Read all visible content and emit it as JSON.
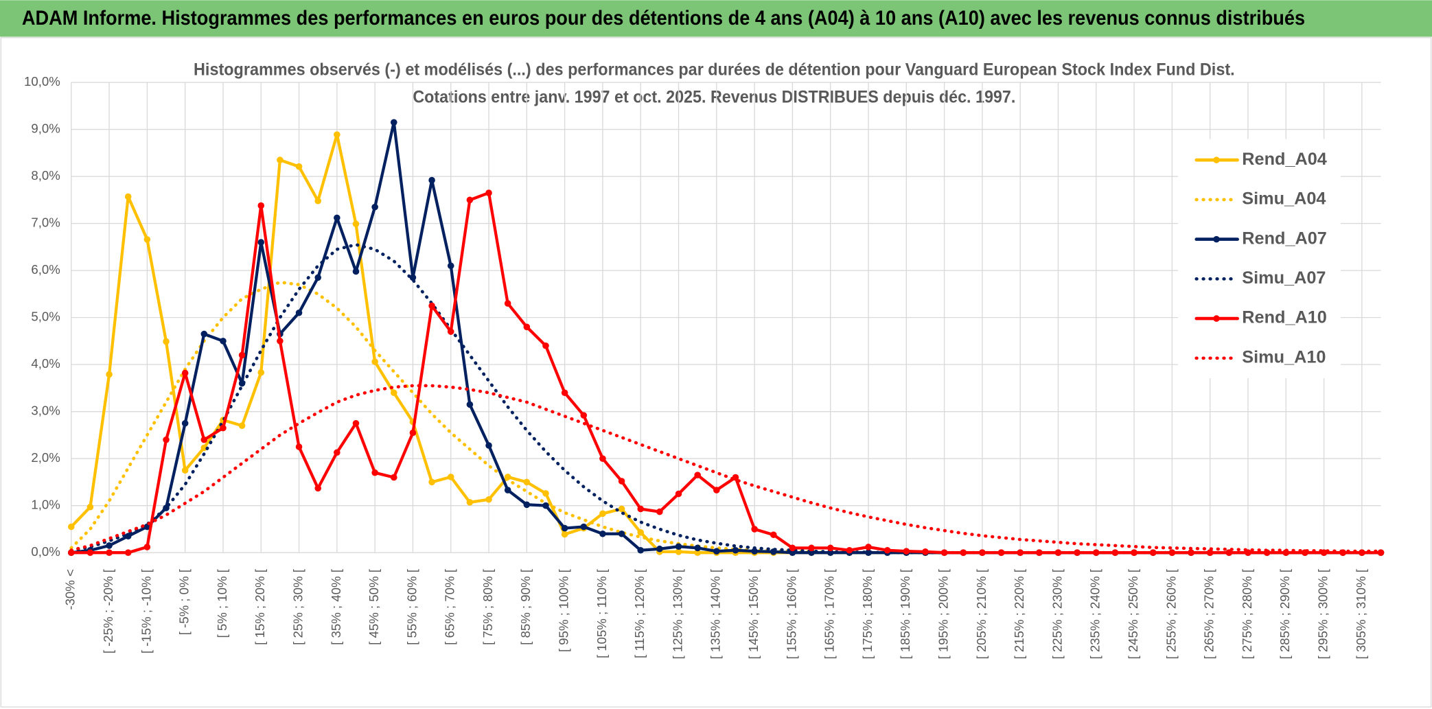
{
  "header": {
    "title": "ADAM Informe. Histogrammes des performances en euros pour des détentions de 4 ans (A04) à 10 ans (A10) avec les revenus connus distribués"
  },
  "chart_data": {
    "type": "line",
    "title": "Histogrammes observés (-) et modélisés (...) des performances par durées de détention pour Vanguard European Stock Index Fund Dist.",
    "subtitle": "Cotations entre janv. 1997 et oct. 2025. Revenus DISTRIBUES depuis déc. 1997.",
    "categories": [
      "-30% <",
      null,
      "[ -25% ; -20% [",
      null,
      "[ -15% ; -10% [",
      null,
      "[ -5% ; 0% [",
      null,
      "[ 5% ; 10% [",
      null,
      "[ 15% ; 20% [",
      null,
      "[ 25% ; 30% [",
      null,
      "[ 35% ; 40% [",
      null,
      "[ 45% ; 50% [",
      null,
      "[ 55% ; 60% [",
      null,
      "[ 65% ; 70% [",
      null,
      "[ 75% ; 80% [",
      null,
      "[ 85% ; 90% [",
      null,
      "[ 95% ; 100% [",
      null,
      "[ 105% ; 110% [",
      null,
      "[ 115% ; 120% [",
      null,
      "[ 125% ; 130% [",
      null,
      "[ 135% ; 140% [",
      null,
      "[ 145% ; 150% [",
      null,
      "[ 155% ; 160% [",
      null,
      "[ 165% ; 170% [",
      null,
      "[ 175% ; 180% [",
      null,
      "[ 185% ; 190% [",
      null,
      "[ 195% ; 200% [",
      null,
      "[ 205% ; 210% [",
      null,
      "[ 215% ; 220% [",
      null,
      "[ 225% ; 230% [",
      null,
      "[ 235% ; 240% [",
      null,
      "[ 245% ; 250% [",
      null,
      "[ 255% ; 260% [",
      null,
      "[ 265% ; 270% [",
      null,
      "[ 275% ; 280% [",
      null,
      "[ 285% ; 290% [",
      null,
      "[ 295% ; 300% [",
      null,
      "[ 305% ; 310% [",
      null
    ],
    "series": [
      {
        "name": "Rend_A04",
        "color": "#ffc000",
        "style": "solid",
        "markers": true,
        "values": [
          0.55,
          0.97,
          3.79,
          7.57,
          6.66,
          4.49,
          1.75,
          2.23,
          2.82,
          2.7,
          3.83,
          8.35,
          8.21,
          7.48,
          8.89,
          6.99,
          4.06,
          3.4,
          2.78,
          1.5,
          1.61,
          1.07,
          1.13,
          1.61,
          1.5,
          1.26,
          0.39,
          0.52,
          0.83,
          0.93,
          0.43,
          0.02,
          0.02,
          0,
          0,
          0,
          0,
          0,
          0,
          0,
          0,
          0,
          0,
          0,
          0,
          0,
          0,
          0,
          0,
          0,
          0,
          0,
          0,
          0,
          0,
          0,
          0,
          0,
          0,
          0,
          0,
          0,
          0,
          0,
          0,
          0,
          0,
          0,
          0,
          0
        ]
      },
      {
        "name": "Simu_A04",
        "color": "#ffc000",
        "style": "dotted",
        "markers": false,
        "values": [
          0.1,
          0.5,
          1.1,
          1.8,
          2.5,
          3.2,
          3.9,
          4.5,
          5.0,
          5.4,
          5.6,
          5.75,
          5.7,
          5.5,
          5.2,
          4.8,
          4.3,
          3.85,
          3.4,
          2.95,
          2.55,
          2.2,
          1.85,
          1.55,
          1.3,
          1.05,
          0.85,
          0.7,
          0.55,
          0.43,
          0.33,
          0.25,
          0.19,
          0.14,
          0.1,
          0.07,
          0.05,
          0.04,
          0.03,
          0.02,
          0.01,
          0,
          0,
          0,
          0,
          0,
          0,
          0,
          0,
          0,
          0,
          0,
          0,
          0,
          0,
          0,
          0,
          0,
          0,
          0,
          0,
          0,
          0,
          0,
          0,
          0,
          0,
          0,
          0,
          0
        ]
      },
      {
        "name": "Rend_A07",
        "color": "#002060",
        "style": "solid",
        "markers": true,
        "values": [
          0,
          0.05,
          0.15,
          0.35,
          0.55,
          0.95,
          2.75,
          4.65,
          4.5,
          3.6,
          6.6,
          4.65,
          5.1,
          5.85,
          7.12,
          5.98,
          7.35,
          9.15,
          5.85,
          7.92,
          6.1,
          3.15,
          2.28,
          1.33,
          1.02,
          1.0,
          0.52,
          0.55,
          0.4,
          0.4,
          0.05,
          0.08,
          0.13,
          0.1,
          0.03,
          0.05,
          0.03,
          0.02,
          0,
          0,
          0,
          0,
          0,
          0,
          0,
          0,
          0,
          0,
          0,
          0,
          0,
          0,
          0,
          0,
          0,
          0,
          0,
          0,
          0,
          0,
          0,
          0,
          0,
          0,
          0,
          0,
          0,
          0,
          0,
          0
        ]
      },
      {
        "name": "Simu_A07",
        "color": "#002060",
        "style": "dotted",
        "markers": false,
        "values": [
          0.05,
          0.12,
          0.25,
          0.4,
          0.6,
          0.95,
          1.45,
          2.1,
          2.8,
          3.55,
          4.3,
          5.0,
          5.6,
          6.1,
          6.45,
          6.55,
          6.45,
          6.2,
          5.8,
          5.3,
          4.75,
          4.2,
          3.65,
          3.1,
          2.6,
          2.15,
          1.75,
          1.4,
          1.1,
          0.85,
          0.65,
          0.5,
          0.37,
          0.27,
          0.2,
          0.14,
          0.1,
          0.07,
          0.05,
          0.03,
          0.02,
          0.01,
          0.01,
          0,
          0,
          0,
          0,
          0,
          0,
          0,
          0,
          0,
          0,
          0,
          0,
          0,
          0,
          0,
          0,
          0,
          0,
          0,
          0,
          0,
          0,
          0,
          0,
          0,
          0,
          0
        ]
      },
      {
        "name": "Rend_A10",
        "color": "#ff0000",
        "style": "solid",
        "markers": true,
        "values": [
          0,
          0,
          0,
          0,
          0.12,
          2.4,
          3.82,
          2.4,
          2.65,
          4.2,
          7.38,
          4.5,
          2.25,
          1.37,
          2.13,
          2.75,
          1.7,
          1.6,
          2.55,
          5.25,
          4.7,
          7.5,
          7.65,
          5.3,
          4.8,
          4.4,
          3.4,
          2.92,
          2.0,
          1.52,
          0.93,
          0.87,
          1.25,
          1.65,
          1.33,
          1.6,
          0.5,
          0.38,
          0.1,
          0.1,
          0.1,
          0.05,
          0.12,
          0.05,
          0.03,
          0.02,
          0,
          0,
          0,
          0,
          0,
          0,
          0,
          0,
          0,
          0,
          0,
          0,
          0,
          0,
          0,
          0,
          0,
          0,
          0,
          0,
          0,
          0,
          0,
          0
        ]
      },
      {
        "name": "Simu_A10",
        "color": "#ff0000",
        "style": "dotted",
        "markers": false,
        "values": [
          0.05,
          0.15,
          0.3,
          0.45,
          0.6,
          0.8,
          1.05,
          1.3,
          1.6,
          1.9,
          2.2,
          2.5,
          2.75,
          2.98,
          3.2,
          3.35,
          3.45,
          3.52,
          3.55,
          3.55,
          3.52,
          3.47,
          3.4,
          3.3,
          3.2,
          3.05,
          2.9,
          2.75,
          2.6,
          2.45,
          2.3,
          2.15,
          2.0,
          1.85,
          1.7,
          1.55,
          1.42,
          1.3,
          1.18,
          1.06,
          0.95,
          0.85,
          0.76,
          0.68,
          0.6,
          0.53,
          0.47,
          0.41,
          0.36,
          0.32,
          0.28,
          0.25,
          0.22,
          0.19,
          0.17,
          0.15,
          0.13,
          0.11,
          0.1,
          0.09,
          0.08,
          0.07,
          0.06,
          0.05,
          0.05,
          0.04,
          0.04,
          0.03,
          0.03,
          0.03
        ]
      }
    ],
    "ylim": [
      0,
      10
    ],
    "yticks": [
      {
        "value": 0,
        "label": "0,0%"
      },
      {
        "value": 1,
        "label": "1,0%"
      },
      {
        "value": 2,
        "label": "2,0%"
      },
      {
        "value": 3,
        "label": "3,0%"
      },
      {
        "value": 4,
        "label": "4,0%"
      },
      {
        "value": 5,
        "label": "5,0%"
      },
      {
        "value": 6,
        "label": "6,0%"
      },
      {
        "value": 7,
        "label": "7,0%"
      },
      {
        "value": 8,
        "label": "8,0%"
      },
      {
        "value": 9,
        "label": "9,0%"
      },
      {
        "value": 10,
        "label": "10,0%"
      }
    ],
    "grid": true,
    "legend": "right"
  }
}
